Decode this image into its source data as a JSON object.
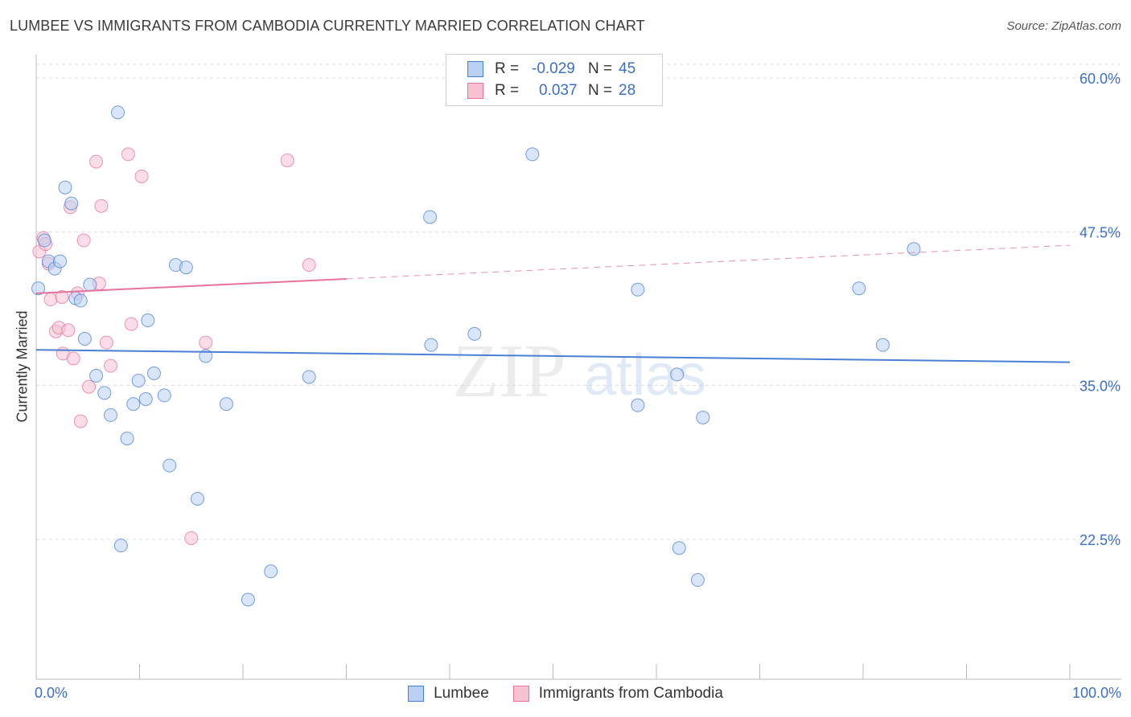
{
  "title": "LUMBEE VS IMMIGRANTS FROM CAMBODIA CURRENTLY MARRIED CORRELATION CHART",
  "source": "Source: ZipAtlas.com",
  "watermark": {
    "zip": "ZIP",
    "atlas": "atlas"
  },
  "legend": {
    "rows": [
      {
        "r_label": "R =",
        "r_value": "-0.029",
        "n_label": "N =",
        "n_value": "45"
      },
      {
        "r_label": "R =",
        "r_value": "0.037",
        "n_label": "N =",
        "n_value": "28"
      }
    ]
  },
  "bottom_legend": [
    "Lumbee",
    "Immigrants from Cambodia"
  ],
  "chart_data": {
    "type": "scatter",
    "title": "LUMBEE VS IMMIGRANTS FROM CAMBODIA CURRENTLY MARRIED CORRELATION CHART",
    "xlabel": "",
    "ylabel": "Currently Married",
    "xlim": [
      0,
      100
    ],
    "ylim": [
      10,
      62.5
    ],
    "x_tick_labels": [
      "0.0%",
      "100.0%"
    ],
    "y_ticks": [
      22.5,
      35.0,
      47.5,
      60.0
    ],
    "y_tick_labels": [
      "22.5%",
      "35.0%",
      "47.5%",
      "60.0%"
    ],
    "colors": {
      "lumbee": "#4a7fd6",
      "cambodia": "#e8739a",
      "lumbee_fill": "#b9d0f2",
      "cambodia_fill": "#f6c1d1"
    },
    "series": [
      {
        "name": "Lumbee",
        "r": -0.029,
        "n": 45,
        "trend": {
          "x": [
            0,
            100
          ],
          "y": [
            37.9,
            36.9
          ],
          "dashed_from": null
        },
        "points": [
          [
            0.2,
            42.9
          ],
          [
            0.8,
            46.8
          ],
          [
            1.2,
            45.1
          ],
          [
            1.8,
            44.5
          ],
          [
            2.3,
            45.1
          ],
          [
            2.8,
            51.1
          ],
          [
            3.4,
            49.8
          ],
          [
            3.8,
            42.1
          ],
          [
            4.3,
            41.9
          ],
          [
            4.7,
            38.8
          ],
          [
            5.2,
            43.2
          ],
          [
            5.8,
            35.8
          ],
          [
            6.6,
            34.4
          ],
          [
            7.2,
            32.6
          ],
          [
            7.9,
            57.2
          ],
          [
            8.2,
            22.0
          ],
          [
            8.8,
            30.7
          ],
          [
            9.4,
            33.5
          ],
          [
            9.9,
            35.4
          ],
          [
            10.6,
            33.9
          ],
          [
            10.8,
            40.3
          ],
          [
            11.4,
            36.0
          ],
          [
            12.4,
            34.2
          ],
          [
            12.9,
            28.5
          ],
          [
            13.5,
            44.8
          ],
          [
            14.5,
            44.6
          ],
          [
            15.6,
            25.8
          ],
          [
            16.4,
            37.4
          ],
          [
            18.4,
            33.5
          ],
          [
            20.5,
            17.6
          ],
          [
            22.7,
            19.9
          ],
          [
            26.4,
            35.7
          ],
          [
            38.2,
            38.3
          ],
          [
            38.1,
            48.7
          ],
          [
            42.4,
            39.2
          ],
          [
            48.0,
            53.8
          ],
          [
            58.2,
            33.4
          ],
          [
            58.2,
            42.8
          ],
          [
            62.0,
            35.9
          ],
          [
            62.2,
            21.8
          ],
          [
            64.0,
            19.2
          ],
          [
            64.5,
            32.4
          ],
          [
            79.6,
            42.9
          ],
          [
            81.9,
            38.3
          ],
          [
            84.9,
            46.1
          ]
        ]
      },
      {
        "name": "Immigrants from Cambodia",
        "r": 0.037,
        "n": 28,
        "trend": {
          "x": [
            0,
            100
          ],
          "y": [
            42.5,
            46.4
          ],
          "dashed_from": 30
        },
        "points": [
          [
            0.3,
            45.9
          ],
          [
            0.7,
            47.0
          ],
          [
            0.9,
            46.5
          ],
          [
            1.2,
            44.9
          ],
          [
            1.4,
            42.0
          ],
          [
            1.9,
            39.4
          ],
          [
            2.2,
            39.7
          ],
          [
            2.5,
            42.2
          ],
          [
            2.6,
            37.6
          ],
          [
            3.1,
            39.5
          ],
          [
            3.3,
            49.5
          ],
          [
            3.6,
            37.2
          ],
          [
            4.0,
            42.5
          ],
          [
            4.3,
            32.1
          ],
          [
            4.6,
            46.8
          ],
          [
            5.1,
            34.9
          ],
          [
            5.8,
            53.2
          ],
          [
            6.1,
            43.3
          ],
          [
            6.3,
            49.6
          ],
          [
            6.8,
            38.5
          ],
          [
            7.2,
            36.6
          ],
          [
            8.9,
            53.8
          ],
          [
            9.2,
            40.0
          ],
          [
            10.2,
            52.0
          ],
          [
            15.0,
            22.6
          ],
          [
            16.4,
            38.5
          ],
          [
            24.3,
            53.3
          ],
          [
            26.4,
            44.8
          ]
        ]
      }
    ]
  }
}
